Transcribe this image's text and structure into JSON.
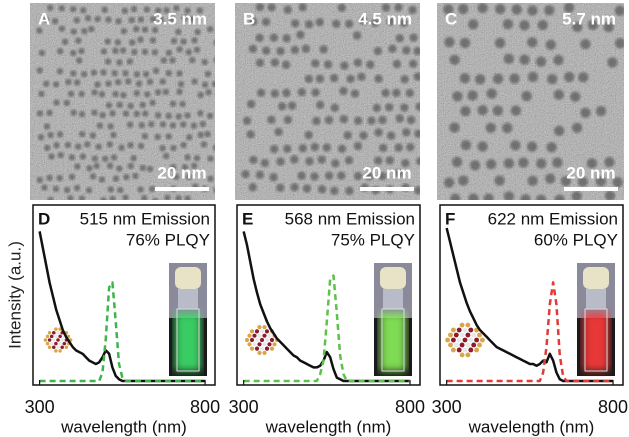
{
  "panels": [
    {
      "label": "A",
      "size": "3.5 nm",
      "scale_bar": "20 nm"
    },
    {
      "label": "B",
      "size": "4.5 nm",
      "scale_bar": "20 nm"
    },
    {
      "label": "C",
      "size": "5.7 nm",
      "scale_bar": "20 nm"
    }
  ],
  "chart_data": [
    {
      "type": "line",
      "panel_label": "D",
      "title": "515 nm Emission",
      "subtitle": "76% PLQY",
      "y_label": "Intensity (a.u.)",
      "x_label": "wavelength (nm)",
      "xlim": [
        280,
        830
      ],
      "xticks": [
        300,
        800
      ],
      "ylim": [
        0,
        1
      ],
      "x": [
        300,
        310,
        320,
        330,
        340,
        350,
        360,
        370,
        380,
        390,
        400,
        410,
        420,
        430,
        440,
        450,
        460,
        470,
        480,
        490,
        500,
        510,
        520,
        530,
        540,
        550,
        560,
        570,
        580,
        590,
        600,
        610,
        620,
        630,
        640,
        650,
        660,
        670,
        680,
        690,
        700,
        710,
        720,
        730,
        740,
        750,
        760,
        770,
        780,
        790,
        800
      ],
      "series": [
        {
          "color": "#111111",
          "dashed": false,
          "values": [
            0.88,
            0.78,
            0.68,
            0.58,
            0.5,
            0.42,
            0.36,
            0.3,
            0.26,
            0.23,
            0.2,
            0.18,
            0.17,
            0.16,
            0.14,
            0.12,
            0.11,
            0.1,
            0.11,
            0.14,
            0.18,
            0.16,
            0.08,
            0.03,
            0.01,
            0,
            0,
            0,
            0,
            0,
            0,
            0,
            0,
            0,
            0,
            0,
            0,
            0,
            0,
            0,
            0,
            0,
            0,
            0,
            0,
            0,
            0,
            0,
            0,
            0,
            0
          ]
        },
        {
          "color": "#3cb54a",
          "dashed": true,
          "values": [
            0,
            0,
            0,
            0,
            0,
            0,
            0,
            0,
            0,
            0,
            0,
            0,
            0,
            0,
            0,
            0,
            0,
            0,
            0,
            0.05,
            0.25,
            0.55,
            0.58,
            0.35,
            0.1,
            0.02,
            0,
            0,
            0,
            0,
            0,
            0,
            0,
            0,
            0,
            0,
            0,
            0,
            0,
            0,
            0,
            0,
            0,
            0,
            0,
            0,
            0,
            0,
            0,
            0,
            0
          ]
        }
      ]
    },
    {
      "type": "line",
      "panel_label": "E",
      "title": "568 nm Emission",
      "subtitle": "75% PLQY",
      "x_label": "wavelength (nm)",
      "xlim": [
        280,
        830
      ],
      "xticks": [
        300,
        800
      ],
      "ylim": [
        0,
        1
      ],
      "x": [
        300,
        310,
        320,
        330,
        340,
        350,
        360,
        370,
        380,
        390,
        400,
        410,
        420,
        430,
        440,
        450,
        460,
        470,
        480,
        490,
        500,
        510,
        520,
        530,
        540,
        550,
        560,
        570,
        580,
        590,
        600,
        610,
        620,
        630,
        640,
        650,
        660,
        670,
        680,
        690,
        700,
        710,
        720,
        730,
        740,
        750,
        760,
        770,
        780,
        790,
        800
      ],
      "series": [
        {
          "color": "#111111",
          "dashed": false,
          "values": [
            0.88,
            0.8,
            0.7,
            0.6,
            0.52,
            0.45,
            0.4,
            0.35,
            0.31,
            0.28,
            0.25,
            0.23,
            0.21,
            0.19,
            0.17,
            0.15,
            0.14,
            0.12,
            0.11,
            0.1,
            0.09,
            0.08,
            0.08,
            0.09,
            0.12,
            0.17,
            0.14,
            0.07,
            0.02,
            0.01,
            0,
            0,
            0,
            0,
            0,
            0,
            0,
            0,
            0,
            0,
            0,
            0,
            0,
            0,
            0,
            0,
            0,
            0,
            0,
            0,
            0
          ]
        },
        {
          "color": "#5cc24a",
          "dashed": true,
          "values": [
            0,
            0,
            0,
            0,
            0,
            0,
            0,
            0,
            0,
            0,
            0,
            0,
            0,
            0,
            0,
            0,
            0,
            0,
            0,
            0,
            0,
            0,
            0,
            0.04,
            0.12,
            0.35,
            0.6,
            0.62,
            0.4,
            0.15,
            0.04,
            0,
            0,
            0,
            0,
            0,
            0,
            0,
            0,
            0,
            0,
            0,
            0,
            0,
            0,
            0,
            0,
            0,
            0,
            0,
            0
          ]
        }
      ]
    },
    {
      "type": "line",
      "panel_label": "F",
      "title": "622 nm Emission",
      "subtitle": "60% PLQY",
      "x_label": "wavelength (nm)",
      "xlim": [
        280,
        830
      ],
      "xticks": [
        300,
        800
      ],
      "ylim": [
        0,
        1
      ],
      "x": [
        300,
        310,
        320,
        330,
        340,
        350,
        360,
        370,
        380,
        390,
        400,
        410,
        420,
        430,
        440,
        450,
        460,
        470,
        480,
        490,
        500,
        510,
        520,
        530,
        540,
        550,
        560,
        570,
        580,
        590,
        600,
        610,
        620,
        630,
        640,
        650,
        660,
        670,
        680,
        690,
        700,
        710,
        720,
        730,
        740,
        750,
        760,
        770,
        780,
        790,
        800
      ],
      "series": [
        {
          "color": "#111111",
          "dashed": false,
          "values": [
            0.9,
            0.82,
            0.74,
            0.66,
            0.58,
            0.52,
            0.46,
            0.41,
            0.37,
            0.33,
            0.3,
            0.28,
            0.26,
            0.24,
            0.22,
            0.2,
            0.19,
            0.18,
            0.17,
            0.16,
            0.15,
            0.14,
            0.13,
            0.12,
            0.11,
            0.1,
            0.1,
            0.09,
            0.1,
            0.12,
            0.11,
            0.16,
            0.12,
            0.05,
            0.01,
            0,
            0,
            0,
            0,
            0,
            0,
            0,
            0,
            0,
            0,
            0,
            0,
            0,
            0,
            0,
            0
          ]
        },
        {
          "color": "#e03a3a",
          "dashed": true,
          "values": [
            0,
            0,
            0,
            0,
            0,
            0,
            0,
            0,
            0,
            0,
            0,
            0,
            0,
            0,
            0,
            0,
            0,
            0,
            0,
            0,
            0,
            0,
            0,
            0,
            0,
            0,
            0,
            0,
            0,
            0.05,
            0.2,
            0.45,
            0.58,
            0.45,
            0.15,
            0.03,
            0,
            0,
            0,
            0,
            0,
            0,
            0,
            0,
            0,
            0,
            0,
            0,
            0,
            0,
            0
          ]
        }
      ]
    }
  ]
}
